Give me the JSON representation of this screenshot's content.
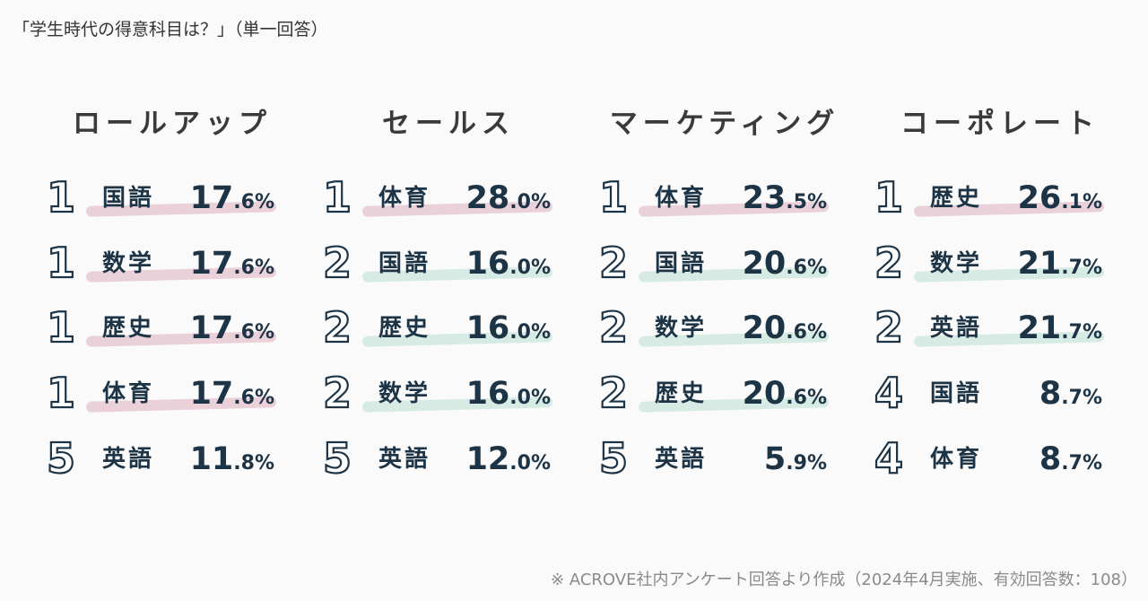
{
  "title": "「学生時代の得意科目は？」（単一回答）",
  "footnote": "※ ACROVE社内アンケート回答より作成（2024年4月実施、有効回答数：108）",
  "colors": {
    "text": "#1d3446",
    "pink_stripe": "#ead0d8",
    "mint_stripe": "#d6ebe4"
  },
  "chart_data": {
    "type": "table",
    "groups": [
      {
        "name": "ロールアップ",
        "rows": [
          {
            "rank": "1",
            "subject": "国語",
            "int": "17",
            "dec": ".6%",
            "value": 17.6,
            "stripe": "pink"
          },
          {
            "rank": "1",
            "subject": "数学",
            "int": "17",
            "dec": ".6%",
            "value": 17.6,
            "stripe": "pink"
          },
          {
            "rank": "1",
            "subject": "歴史",
            "int": "17",
            "dec": ".6%",
            "value": 17.6,
            "stripe": "pink"
          },
          {
            "rank": "1",
            "subject": "体育",
            "int": "17",
            "dec": ".6%",
            "value": 17.6,
            "stripe": "pink"
          },
          {
            "rank": "5",
            "subject": "英語",
            "int": "11",
            "dec": ".8%",
            "value": 11.8,
            "stripe": "none"
          }
        ]
      },
      {
        "name": "セールス",
        "rows": [
          {
            "rank": "1",
            "subject": "体育",
            "int": "28",
            "dec": ".0%",
            "value": 28.0,
            "stripe": "pink"
          },
          {
            "rank": "2",
            "subject": "国語",
            "int": "16",
            "dec": ".0%",
            "value": 16.0,
            "stripe": "mint"
          },
          {
            "rank": "2",
            "subject": "歴史",
            "int": "16",
            "dec": ".0%",
            "value": 16.0,
            "stripe": "mint"
          },
          {
            "rank": "2",
            "subject": "数学",
            "int": "16",
            "dec": ".0%",
            "value": 16.0,
            "stripe": "mint"
          },
          {
            "rank": "5",
            "subject": "英語",
            "int": "12",
            "dec": ".0%",
            "value": 12.0,
            "stripe": "none"
          }
        ]
      },
      {
        "name": "マーケティング",
        "rows": [
          {
            "rank": "1",
            "subject": "体育",
            "int": "23",
            "dec": ".5%",
            "value": 23.5,
            "stripe": "pink"
          },
          {
            "rank": "2",
            "subject": "国語",
            "int": "20",
            "dec": ".6%",
            "value": 20.6,
            "stripe": "mint"
          },
          {
            "rank": "2",
            "subject": "数学",
            "int": "20",
            "dec": ".6%",
            "value": 20.6,
            "stripe": "mint"
          },
          {
            "rank": "2",
            "subject": "歴史",
            "int": "20",
            "dec": ".6%",
            "value": 20.6,
            "stripe": "mint"
          },
          {
            "rank": "5",
            "subject": "英語",
            "int": "5",
            "dec": ".9%",
            "value": 5.9,
            "stripe": "none"
          }
        ]
      },
      {
        "name": "コーポレート",
        "rows": [
          {
            "rank": "1",
            "subject": "歴史",
            "int": "26",
            "dec": ".1%",
            "value": 26.1,
            "stripe": "pink"
          },
          {
            "rank": "2",
            "subject": "数学",
            "int": "21",
            "dec": ".7%",
            "value": 21.7,
            "stripe": "mint"
          },
          {
            "rank": "2",
            "subject": "英語",
            "int": "21",
            "dec": ".7%",
            "value": 21.7,
            "stripe": "mint"
          },
          {
            "rank": "4",
            "subject": "国語",
            "int": "8",
            "dec": ".7%",
            "value": 8.7,
            "stripe": "none"
          },
          {
            "rank": "4",
            "subject": "体育",
            "int": "8",
            "dec": ".7%",
            "value": 8.7,
            "stripe": "none"
          }
        ]
      }
    ]
  }
}
